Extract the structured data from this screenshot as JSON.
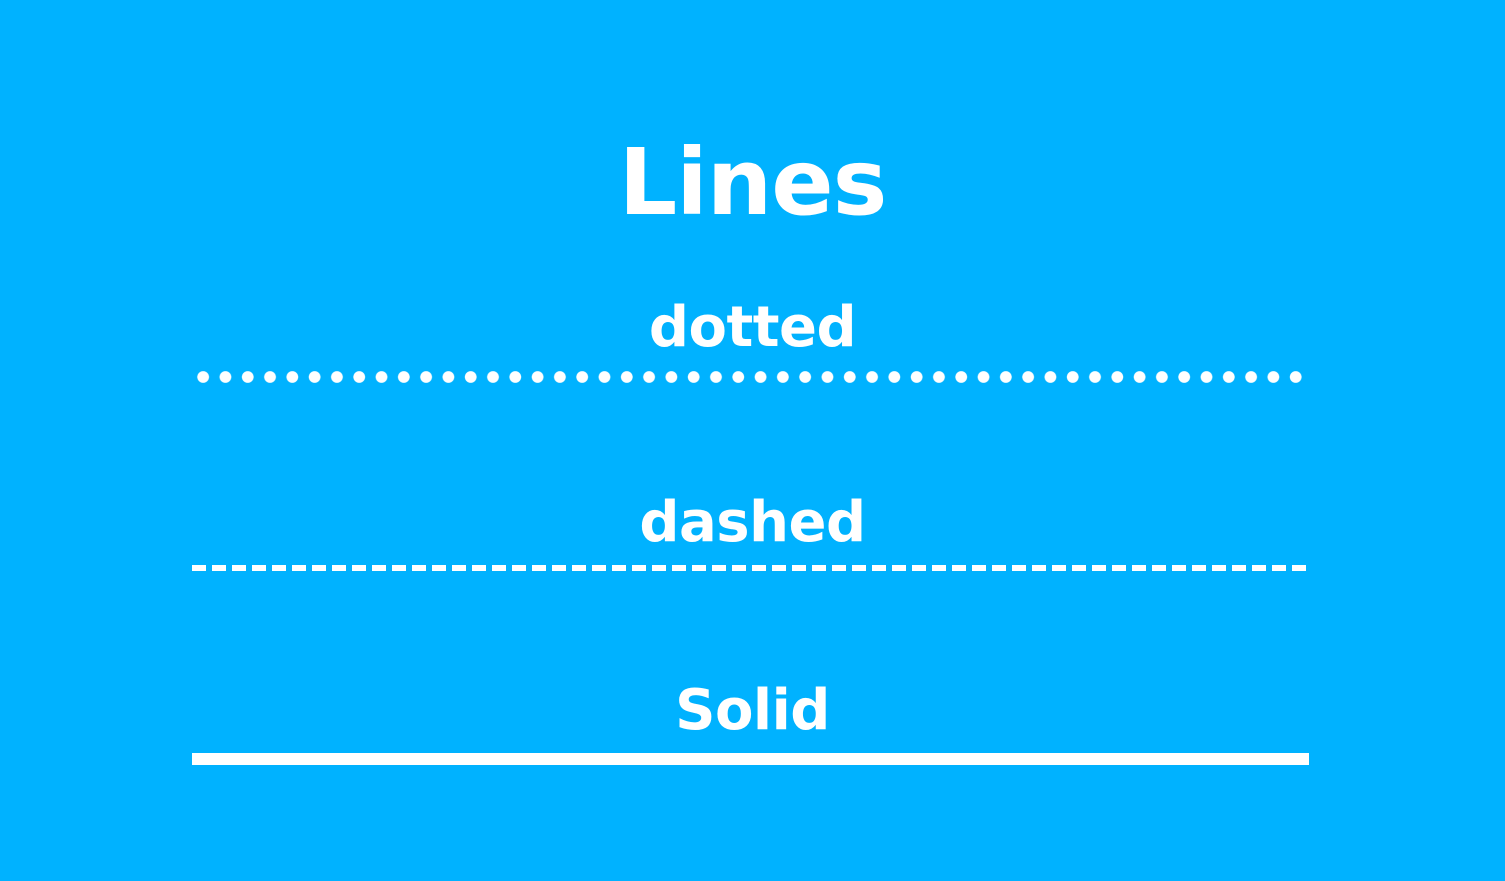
{
  "title": "Lines",
  "lines": [
    {
      "label": "dotted",
      "style": "dotted"
    },
    {
      "label": "dashed",
      "style": "dashed"
    },
    {
      "label": "Solid",
      "style": "solid"
    }
  ],
  "colors": {
    "background": "#00b2ff",
    "foreground": "#ffffff"
  }
}
